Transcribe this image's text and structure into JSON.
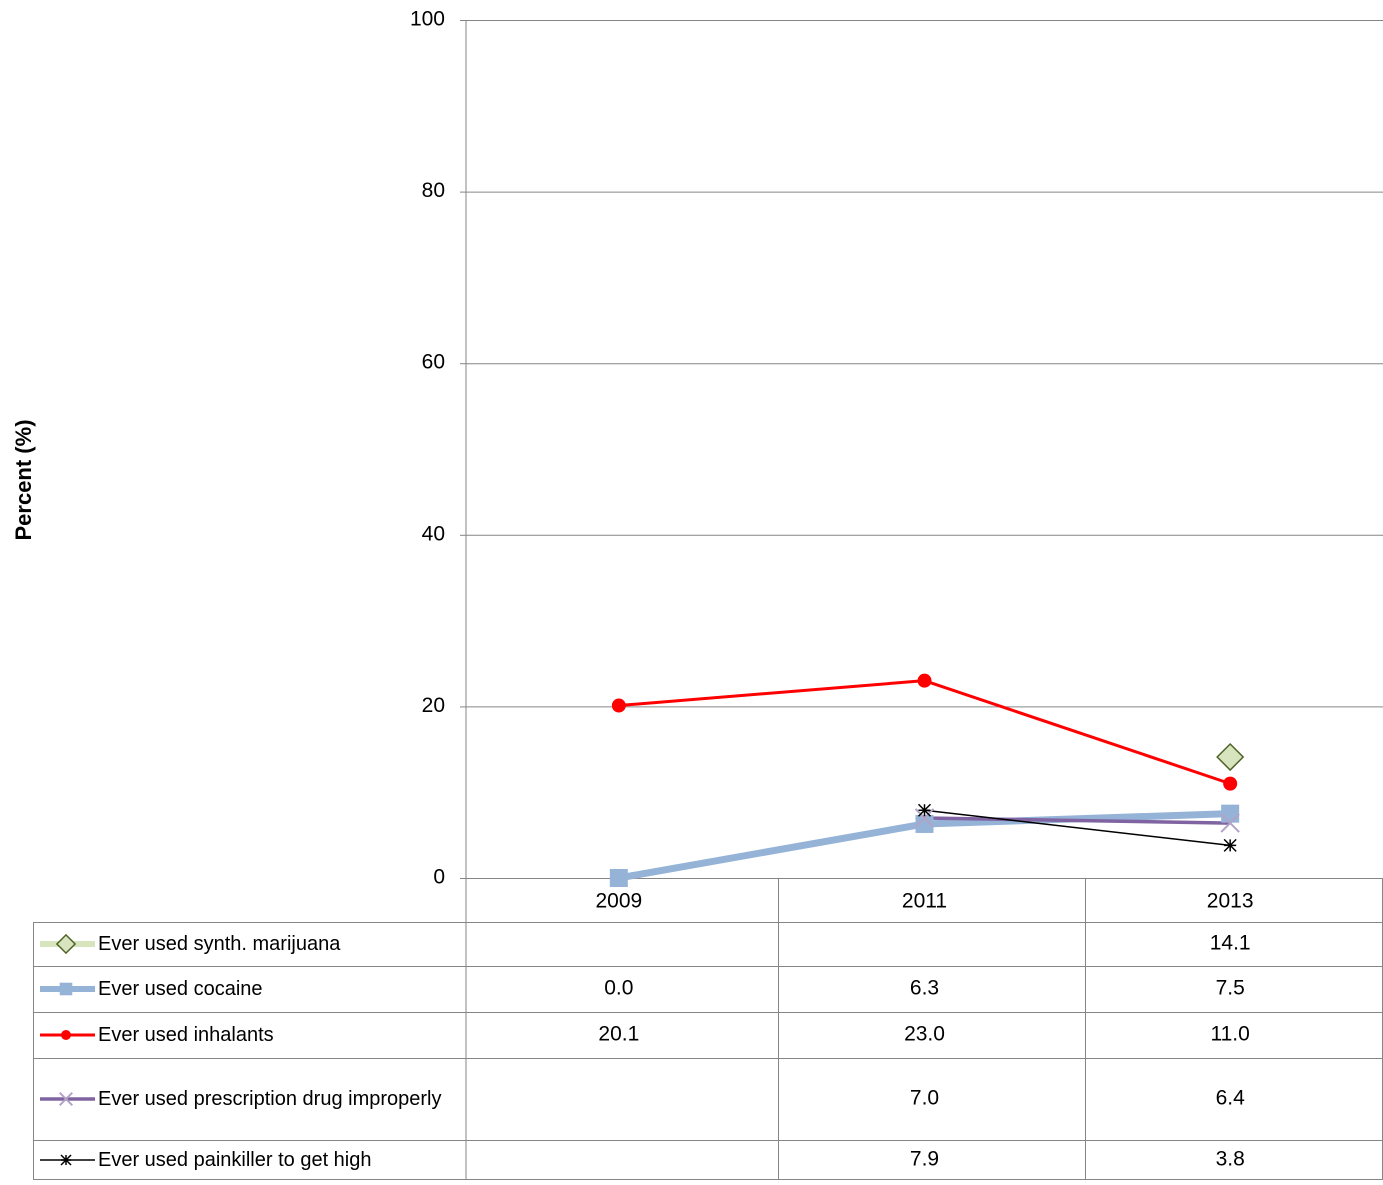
{
  "chart_data": {
    "type": "line",
    "y_label": "Percent (%)",
    "categories": [
      "2009",
      "2011",
      "2013"
    ],
    "ylim": [
      0,
      100
    ],
    "yticks": [
      0,
      20,
      40,
      60,
      80,
      100
    ],
    "grid": true,
    "series": [
      {
        "name": "Ever used synth. marijuana",
        "color": "#d7e4bd",
        "marker": "diamond",
        "values": [
          null,
          null,
          14.1
        ],
        "value_labels": [
          null,
          null,
          "14.1"
        ]
      },
      {
        "name": "Ever used cocaine",
        "color": "#95b3d7",
        "marker": "square",
        "values": [
          0.0,
          6.3,
          7.5
        ],
        "value_labels": [
          "0.0",
          "6.3",
          "7.5"
        ]
      },
      {
        "name": "Ever used inhalants",
        "color": "#ff0000",
        "marker": "circle",
        "values": [
          20.1,
          23.0,
          11.0
        ],
        "value_labels": [
          "20.1",
          "23.0",
          "11.0"
        ]
      },
      {
        "name": "Ever used prescription drug improperly",
        "color": "#8064a2",
        "marker": "x",
        "values": [
          null,
          7.0,
          6.4
        ],
        "value_labels": [
          null,
          "7.0",
          "6.4"
        ]
      },
      {
        "name": "Ever used painkiller to get high",
        "color": "#000000",
        "marker": "star",
        "values": [
          null,
          7.9,
          3.8
        ],
        "value_labels": [
          null,
          "7.9",
          "3.8"
        ]
      }
    ]
  }
}
